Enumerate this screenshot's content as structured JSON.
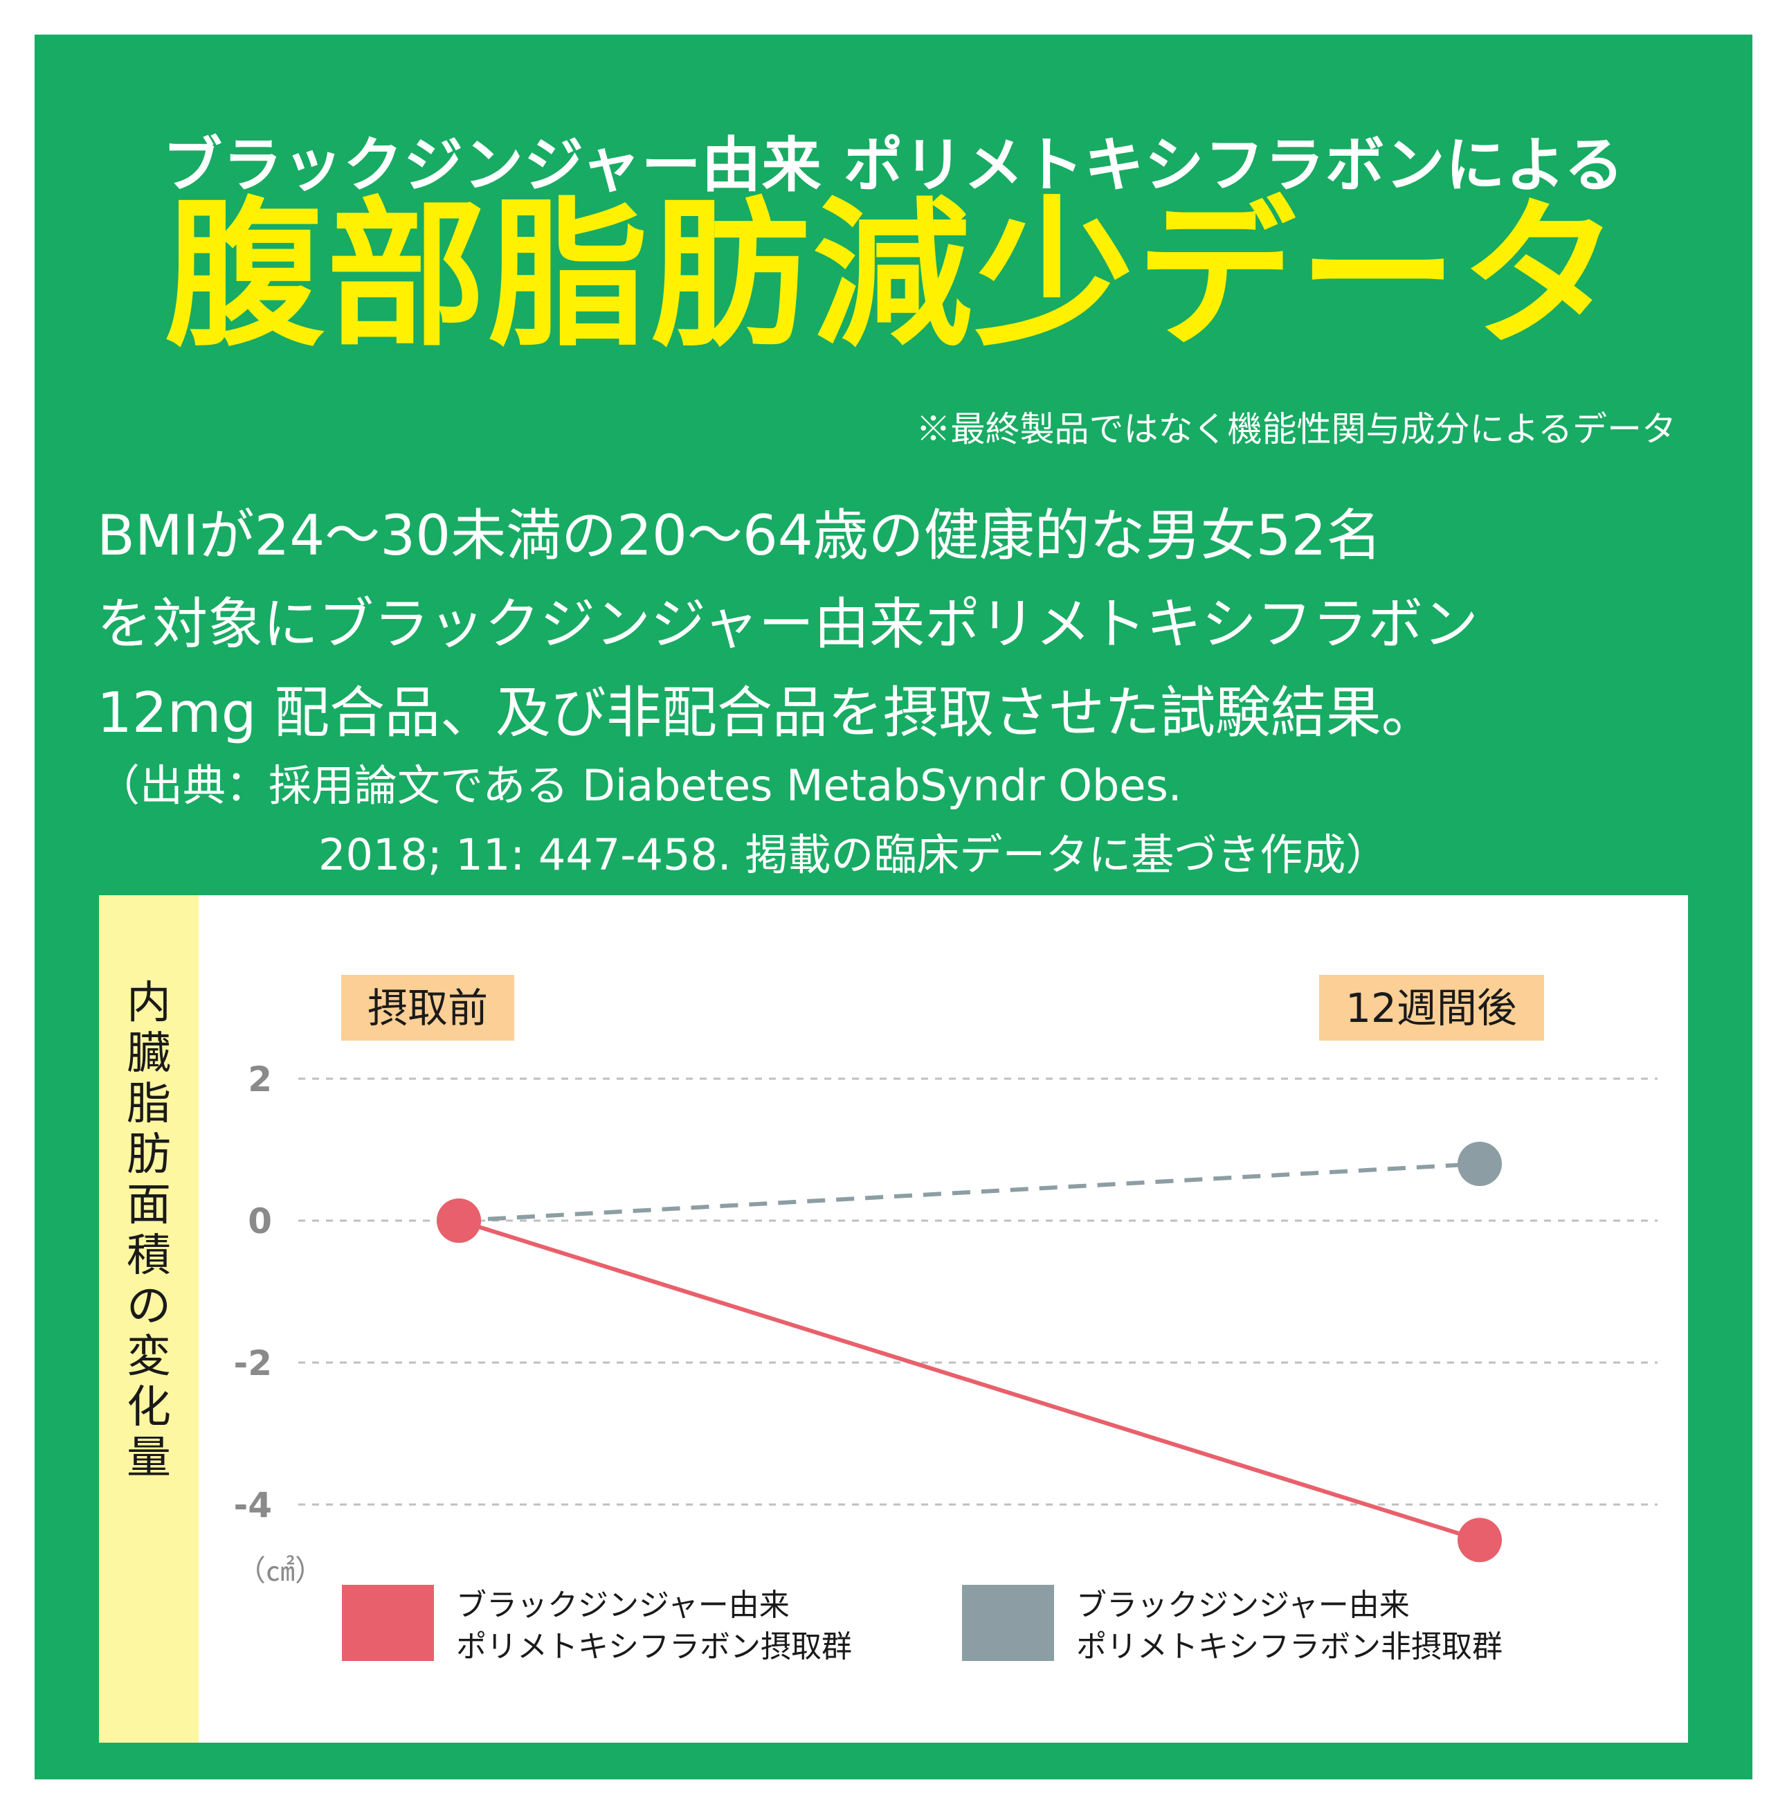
{
  "header": {
    "line1": "ブラックジンジャー由来 ポリメトキシフラボンによる",
    "title": "腹部脂肪減少データ",
    "note": "※最終製品ではなく機能性関与成分によるデータ"
  },
  "description": {
    "lines": [
      "BMIが24〜30未満の20〜64歳の健康的な男女52名",
      "を対象にブラックジンジャー由来ポリメトキシフラボン",
      "12mg 配合品、及び非配合品を摂取させた試験結果。"
    ]
  },
  "citation": {
    "line1": "（出典：採用論文である Diabetes MetabSyndr Obes.",
    "line2": "2018; 11: 447-458. 掲載の臨床データに基づき作成）"
  },
  "colors": {
    "background": "#18ab63",
    "title_yellow": "#fff100",
    "label_strip": "#fdf7a2",
    "tag_bg": "#fbcf95",
    "series_intake": "#e8606b",
    "series_control": "#8c9ea3",
    "tick_text": "#8a8a8a",
    "grid": "#bfbfbf"
  },
  "chart_data": {
    "type": "line",
    "ylabel": "内臓脂肪面積の変化量",
    "yunit": "（㎠）",
    "categories": [
      "摂取前",
      "12週間後"
    ],
    "yticks": [
      2,
      0,
      -2,
      -4
    ],
    "ytick_labels": [
      "2",
      "0",
      "-2",
      "-4"
    ],
    "ylim": [
      -4.5,
      2.2
    ],
    "grid": true,
    "legend_position": "bottom",
    "series": [
      {
        "name": "ブラックジンジャー由来ポリメトキシフラボン摂取群",
        "legend_lines": [
          "ブラックジンジャー由来",
          "ポリメトキシフラボン摂取群"
        ],
        "values": [
          0,
          -4.5
        ],
        "style": "solid"
      },
      {
        "name": "ブラックジンジャー由来ポリメトキシフラボン非摂取群",
        "legend_lines": [
          "ブラックジンジャー由来",
          "ポリメトキシフラボン非摂取群"
        ],
        "values": [
          0,
          0.8
        ],
        "style": "dashed"
      }
    ]
  }
}
